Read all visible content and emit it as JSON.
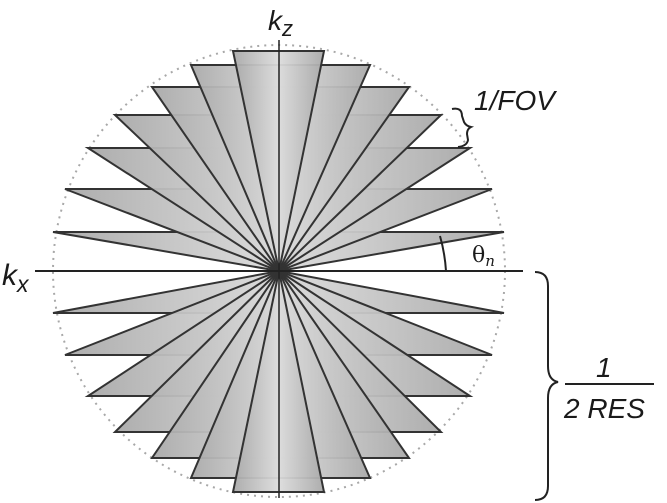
{
  "labels": {
    "kz_base": "k",
    "kz_sub": "z",
    "kx_base": "k",
    "kx_sub": "x",
    "fov": "1/FOV",
    "theta_base": "θ",
    "theta_sub": "n",
    "res_num": "1",
    "res_den": "2 RES"
  },
  "colors": {
    "cone_fill": "#bdbdbd",
    "stroke": "#333333",
    "dotted_circle": "#a8a8a8"
  }
}
